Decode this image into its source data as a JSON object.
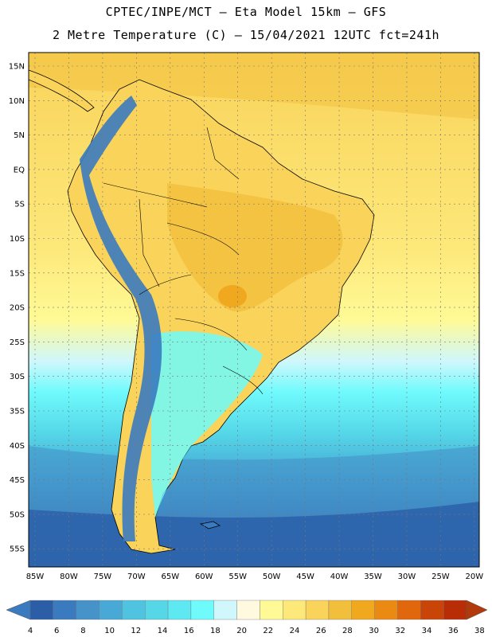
{
  "header": {
    "line1": "CPTEC/INPE/MCT –  Eta Model 15km – GFS",
    "line2": "2 Metre Temperature (C) – 15/04/2021 12UTC fct=241h"
  },
  "axes": {
    "lat_labels": [
      "15N",
      "10N",
      "5N",
      "EQ",
      "5S",
      "10S",
      "15S",
      "20S",
      "25S",
      "30S",
      "35S",
      "40S",
      "45S",
      "50S",
      "55S"
    ],
    "lon_labels": [
      "85W",
      "80W",
      "75W",
      "70W",
      "65W",
      "60W",
      "55W",
      "50W",
      "45W",
      "40W",
      "35W",
      "30W",
      "25W",
      "20W"
    ]
  },
  "colorbar": {
    "ticks": [
      "4",
      "6",
      "8",
      "10",
      "12",
      "14",
      "16",
      "18",
      "20",
      "22",
      "24",
      "26",
      "28",
      "30",
      "32",
      "34",
      "36",
      "38"
    ],
    "colors": [
      "#2b5ea7",
      "#3a7bbf",
      "#4593c8",
      "#48a9d6",
      "#4fc3e0",
      "#55d7e8",
      "#5ee8f2",
      "#6ffafc",
      "#cff7fc",
      "#fff9e0",
      "#fffa96",
      "#fde87a",
      "#f9d35a",
      "#f2bf3c",
      "#f0a81e",
      "#eb8a12",
      "#e0670b",
      "#c94507",
      "#b82d05"
    ],
    "end_colors": {
      "low": "#3a7bbf",
      "high": "#b2390b"
    }
  }
}
